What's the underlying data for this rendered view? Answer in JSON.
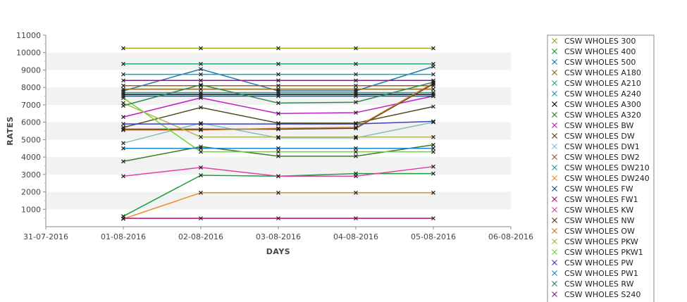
{
  "chart_data": {
    "type": "line",
    "title": "",
    "xlabel": "DAYS",
    "ylabel": "RATES",
    "x_ticks": [
      "31-07-2016",
      "01-08-2016",
      "02-08-2016",
      "03-08-2016",
      "04-08-2016",
      "05-08-2016",
      "06-08-2016"
    ],
    "x": [
      "01-08-2016",
      "02-08-2016",
      "03-08-2016",
      "04-08-2016",
      "05-08-2016"
    ],
    "xlim": [
      "31-07-2016",
      "06-08-2016"
    ],
    "ylim": [
      0,
      11000
    ],
    "y_ticks": [
      1000,
      2000,
      3000,
      4000,
      5000,
      6000,
      7000,
      8000,
      9000,
      10000,
      11000
    ],
    "grid": "horizontal bands",
    "legend_position": "right",
    "series": [
      {
        "name": "CSW WHOLES 300",
        "color": "#a3a31f",
        "values": [
          10250,
          10250,
          10250,
          10250,
          10250
        ]
      },
      {
        "name": "CSW WHOLES 400",
        "color": "#1b9e3e",
        "values": [
          600,
          2950,
          2900,
          3050,
          3050
        ]
      },
      {
        "name": "CSW WHOLES 500",
        "color": "#1f78b4",
        "values": [
          7800,
          9050,
          7800,
          7800,
          9200
        ]
      },
      {
        "name": "CSW WHOLES A180",
        "color": "#8c6d1f",
        "values": [
          7900,
          7900,
          7900,
          7900,
          7900
        ]
      },
      {
        "name": "CSW WHOLES A210",
        "color": "#2ca58d",
        "values": [
          9350,
          9350,
          9350,
          9350,
          9350
        ]
      },
      {
        "name": "CSW WHOLES A240",
        "color": "#17a2b8",
        "values": [
          8750,
          8750,
          8750,
          8750,
          8750
        ]
      },
      {
        "name": "CSW WHOLES A300",
        "color": "#111111",
        "values": [
          7600,
          7600,
          7600,
          7600,
          7600
        ]
      },
      {
        "name": "CSW WHOLES A320",
        "color": "#3a7d23",
        "values": [
          3750,
          4600,
          4050,
          4050,
          4700
        ]
      },
      {
        "name": "CSW WHOLES BW",
        "color": "#c020c0",
        "values": [
          6300,
          7400,
          6500,
          6550,
          7500
        ]
      },
      {
        "name": "CSW WHOLES DW",
        "color": "#4d4d1a",
        "values": [
          5700,
          6850,
          5950,
          5950,
          6900
        ]
      },
      {
        "name": "CSW WHOLES DW1",
        "color": "#7fbfbf",
        "values": [
          4800,
          5950,
          5100,
          5100,
          6000
        ]
      },
      {
        "name": "CSW WHOLES DW2",
        "color": "#a05a2c",
        "values": [
          8100,
          8100,
          8100,
          8100,
          8100
        ]
      },
      {
        "name": "CSW WHOLES DW210",
        "color": "#1aa0a0",
        "values": [
          7700,
          7700,
          7700,
          7700,
          7700
        ]
      },
      {
        "name": "CSW WHOLES DW240",
        "color": "#e8902a",
        "values": [
          450,
          1950,
          1950,
          1950,
          1950
        ]
      },
      {
        "name": "CSW WHOLES FW",
        "color": "#1f4e79",
        "values": [
          7500,
          7500,
          7500,
          7500,
          7500
        ]
      },
      {
        "name": "CSW WHOLES FW1",
        "color": "#b0106a",
        "values": [
          480,
          480,
          480,
          480,
          480
        ]
      },
      {
        "name": "CSW WHOLES KW",
        "color": "#e040a0",
        "values": [
          2900,
          3400,
          2900,
          2900,
          3450
        ]
      },
      {
        "name": "CSW WHOLES NW",
        "color": "#5a3a1a",
        "values": [
          5600,
          5600,
          5600,
          5650,
          8200
        ]
      },
      {
        "name": "CSW WHOLES OW",
        "color": "#c8782a",
        "values": [
          5550,
          5550,
          5650,
          5700,
          8250
        ]
      },
      {
        "name": "CSW WHOLES PKW",
        "color": "#b5b554",
        "values": [
          7100,
          5150,
          5150,
          5150,
          5150
        ]
      },
      {
        "name": "CSW WHOLES PKW1",
        "color": "#6cd62a",
        "values": [
          7400,
          4300,
          4300,
          4300,
          4300
        ]
      },
      {
        "name": "CSW WHOLES PW",
        "color": "#4040c0",
        "values": [
          5900,
          5900,
          5900,
          5900,
          6050
        ]
      },
      {
        "name": "CSW WHOLES PW1",
        "color": "#1c86c8",
        "values": [
          4500,
          4500,
          4500,
          4500,
          4500
        ]
      },
      {
        "name": "CSW WHOLES RW",
        "color": "#2e8b57",
        "values": [
          6950,
          8150,
          7100,
          7150,
          8300
        ]
      },
      {
        "name": "CSW WHOLES S240",
        "color": "#7a2a7a",
        "values": [
          8400,
          8400,
          8400,
          8400,
          8400
        ]
      }
    ]
  }
}
